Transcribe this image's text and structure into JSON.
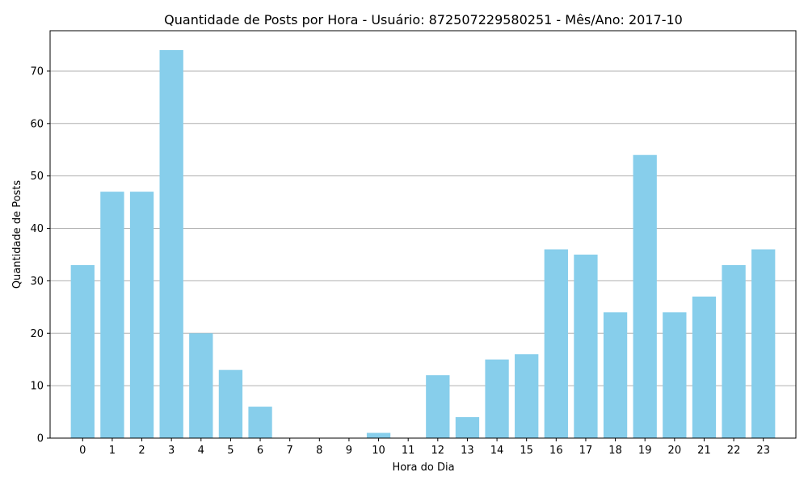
{
  "chart_data": {
    "type": "bar",
    "title": "Quantidade de Posts por Hora - Usuário: 872507229580251 - Mês/Ano: 2017-10",
    "xlabel": "Hora do Dia",
    "ylabel": "Quantidade de Posts",
    "categories": [
      "0",
      "1",
      "2",
      "3",
      "4",
      "5",
      "6",
      "7",
      "8",
      "9",
      "10",
      "11",
      "12",
      "13",
      "14",
      "15",
      "16",
      "17",
      "18",
      "19",
      "20",
      "21",
      "22",
      "23"
    ],
    "values": [
      33,
      47,
      47,
      74,
      20,
      13,
      6,
      0,
      0,
      0,
      1,
      0,
      12,
      4,
      15,
      16,
      36,
      35,
      24,
      54,
      24,
      27,
      33,
      36
    ],
    "ylim": [
      0,
      77.7
    ],
    "yticks": [
      0,
      10,
      20,
      30,
      40,
      50,
      60,
      70
    ],
    "grid": "y",
    "colors": {
      "bar": "#87CEEB",
      "grid": "#b0b0b0",
      "axis": "#000000"
    }
  }
}
